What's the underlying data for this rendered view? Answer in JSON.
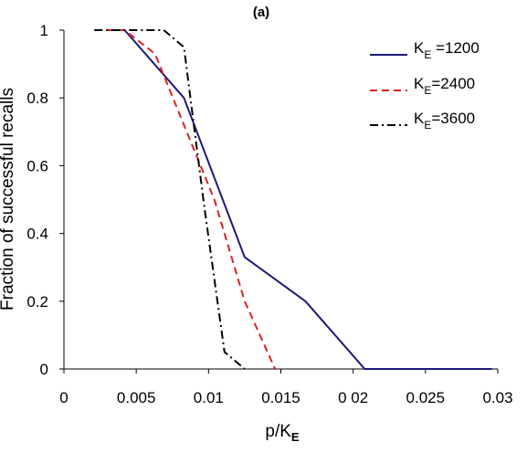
{
  "chart_data": {
    "type": "line",
    "title": "(a)",
    "xlabel": {
      "main": "p/K",
      "sub": "E"
    },
    "ylabel": "Fraction of successful recalls",
    "xlim": [
      0,
      0.03
    ],
    "ylim": [
      0,
      1
    ],
    "x_ticks": [
      0,
      0.005,
      0.01,
      0.015,
      0.02,
      0.025,
      0.03
    ],
    "x_tick_labels": [
      "0",
      "0.005",
      "0.01",
      "0.015",
      "0 02",
      "0.025",
      "0.03"
    ],
    "y_ticks": [
      0,
      0.2,
      0.4,
      0.6,
      0.8,
      1
    ],
    "y_tick_labels": [
      "0",
      "0.2",
      "0.4",
      "0.6",
      "0.8",
      "1"
    ],
    "grid": false,
    "legend_position": "top-right",
    "series": [
      {
        "label_main": "K",
        "label_sub": "E",
        "label_value": " =1200",
        "style": "solid",
        "color": "#1c1a78",
        "x": [
          0.0042,
          0.0083,
          0.0125,
          0.0167,
          0.0208,
          0.0296
        ],
        "y": [
          1.0,
          0.8,
          0.33,
          0.2,
          0.0,
          0.0
        ]
      },
      {
        "label_main": "K",
        "label_sub": "E",
        "label_value": "=2400",
        "style": "dashed",
        "color": "#e02020",
        "x": [
          0.0021,
          0.0042,
          0.0063,
          0.0083,
          0.0104,
          0.0125,
          0.0146
        ],
        "y": [
          1.0,
          1.0,
          0.93,
          0.72,
          0.5,
          0.2,
          0.0
        ]
      },
      {
        "label_main": "K",
        "label_sub": "E",
        "label_value": "=3600",
        "style": "dashdot",
        "color": "#000000",
        "x": [
          0.0021,
          0.0042,
          0.0056,
          0.0069,
          0.0083,
          0.0097,
          0.0111,
          0.0125
        ],
        "y": [
          1.0,
          1.0,
          1.0,
          1.0,
          0.95,
          0.48,
          0.05,
          0.0
        ]
      }
    ]
  }
}
